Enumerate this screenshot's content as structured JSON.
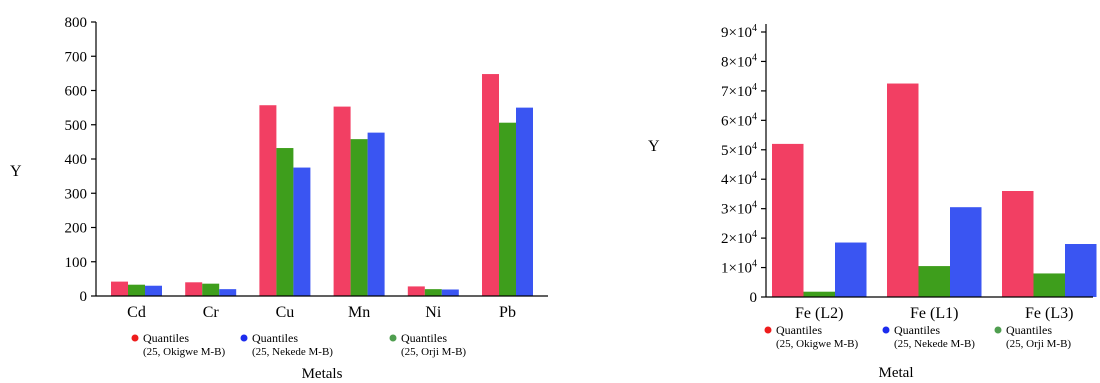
{
  "colors": {
    "okigwe": "#f23f63",
    "nekede": "#3a55f2",
    "orji": "#3e9e1c",
    "legend_okigwe_dot": "#ee1c1c",
    "legend_nekede_dot": "#1c2cee",
    "legend_orji_dot": "#4f9e4f"
  },
  "chart_data": [
    {
      "type": "bar",
      "categories": [
        "Cd",
        "Cr",
        "Cu",
        "Mn",
        "Ni",
        "Pb"
      ],
      "series": [
        {
          "name": "Quantiles (25, Okigwe M-B)",
          "values": [
            42,
            40,
            557,
            553,
            28,
            648
          ]
        },
        {
          "name": "Quantiles (25, Orji M-B)",
          "values": [
            33,
            36,
            432,
            458,
            20,
            506
          ]
        },
        {
          "name": "Quantiles (25, Nekede M-B)",
          "values": [
            30,
            20,
            375,
            477,
            19,
            550
          ]
        }
      ],
      "ylabel": "Y",
      "xlabel": "Metals",
      "ylim": [
        0,
        800
      ],
      "yticks": [
        "0",
        "100",
        "200",
        "300",
        "400",
        "500",
        "600",
        "700",
        "800"
      ],
      "legend": [
        {
          "line1": "Quantiles",
          "line2": "(25, Okigwe M-B)"
        },
        {
          "line1": "Quantiles",
          "line2": "(25, Nekede M-B)"
        },
        {
          "line1": "Quantiles",
          "line2": "(25, Orji M-B)"
        }
      ],
      "legend_position": "bottom",
      "grid": false
    },
    {
      "type": "bar",
      "categories": [
        "Fe (L2)",
        "Fe (L1)",
        "Fe (L3)"
      ],
      "series": [
        {
          "name": "Quantiles (25, Okigwe M-B)",
          "values": [
            52000,
            72500,
            36000
          ]
        },
        {
          "name": "Quantiles (25, Orji M-B)",
          "values": [
            1800,
            10500,
            8000
          ]
        },
        {
          "name": "Quantiles (25, Nekede M-B)",
          "values": [
            18500,
            30500,
            18000
          ]
        }
      ],
      "ylabel": "Y",
      "xlabel": "Metal",
      "ylim": [
        0,
        90000
      ],
      "yticks": [
        {
          "mant": "0",
          "exp": ""
        },
        {
          "mant": "1×10",
          "exp": "4"
        },
        {
          "mant": "2×10",
          "exp": "4"
        },
        {
          "mant": "3×10",
          "exp": "4"
        },
        {
          "mant": "4×10",
          "exp": "4"
        },
        {
          "mant": "5×10",
          "exp": "4"
        },
        {
          "mant": "6×10",
          "exp": "4"
        },
        {
          "mant": "7×10",
          "exp": "4"
        },
        {
          "mant": "8×10",
          "exp": "4"
        },
        {
          "mant": "9×10",
          "exp": "4"
        }
      ],
      "legend": [
        {
          "line1": "Quantiles",
          "line2": "(25, Okigwe M-B)"
        },
        {
          "line1": "Quantiles",
          "line2": "(25, Nekede M-B)"
        },
        {
          "line1": "Quantiles",
          "line2": "(25, Orji M-B)"
        }
      ],
      "legend_position": "bottom",
      "grid": false
    }
  ]
}
